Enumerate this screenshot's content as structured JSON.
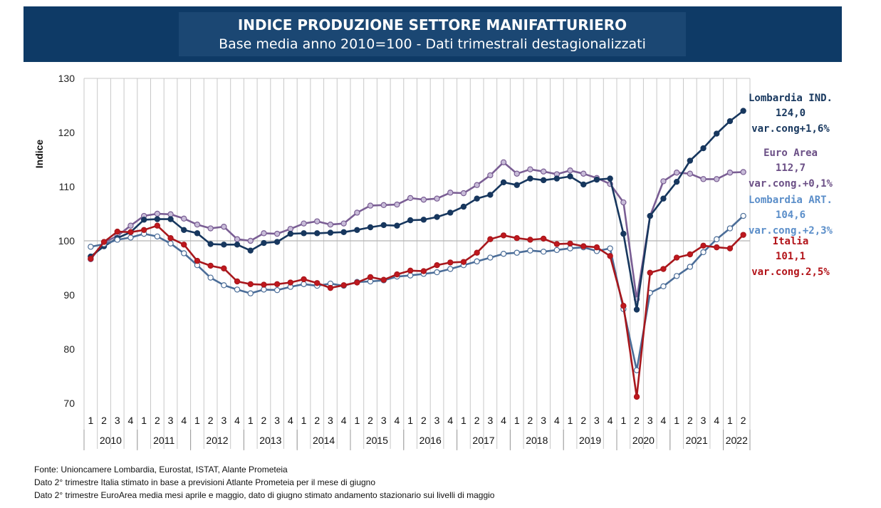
{
  "header": {
    "title": "INDICE PRODUZIONE SETTORE MANIFATTURIERO",
    "subtitle": "Base media anno 2010=100 - Dati trimestrali destagionalizzati"
  },
  "notes": [
    "Fonte:  Unioncamere Lombardia, Eurostat, ISTAT,  Alante Prometeia",
    "Dato 2° trimestre  Italia stimato in base a previsioni Atlante Prometeia per  il mese di giugno",
    "Dato 2° trimestre  EuroArea media mesi aprile e maggio, dato di giugno stimato andamento stazionario sui livelli di maggio"
  ],
  "chart_data": {
    "type": "line",
    "ylabel": "Indice",
    "xlabel": "",
    "ylim": [
      70,
      130
    ],
    "yticks": [
      70,
      80,
      90,
      100,
      110,
      120,
      130
    ],
    "quarters": [
      "1",
      "2",
      "3",
      "4",
      "1",
      "2",
      "3",
      "4",
      "1",
      "2",
      "3",
      "4",
      "1",
      "2",
      "3",
      "4",
      "1",
      "2",
      "3",
      "4",
      "1",
      "2",
      "3",
      "4",
      "1",
      "2",
      "3",
      "4",
      "1",
      "2",
      "3",
      "4",
      "1",
      "2",
      "3",
      "4",
      "1",
      "2",
      "3",
      "4",
      "1",
      "2",
      "3",
      "4",
      "1",
      "2",
      "3",
      "4",
      "1",
      "2"
    ],
    "years": [
      {
        "label": "2010",
        "quarters": 4
      },
      {
        "label": "2011",
        "quarters": 4
      },
      {
        "label": "2012",
        "quarters": 4
      },
      {
        "label": "2013",
        "quarters": 4
      },
      {
        "label": "2014",
        "quarters": 4
      },
      {
        "label": "2015",
        "quarters": 4
      },
      {
        "label": "2016",
        "quarters": 4
      },
      {
        "label": "2017",
        "quarters": 4
      },
      {
        "label": "2018",
        "quarters": 4
      },
      {
        "label": "2019",
        "quarters": 4
      },
      {
        "label": "2020",
        "quarters": 4
      },
      {
        "label": "2021",
        "quarters": 4
      },
      {
        "label": "2022",
        "quarters": 2
      }
    ],
    "grid": true,
    "reference_line": 100,
    "series": [
      {
        "key": "euro",
        "color": "#7a5e94",
        "marker_fill": "#c8bcd8",
        "values": [
          96.6,
          99.7,
          100.9,
          102.8,
          104.6,
          105.0,
          104.9,
          104.1,
          103.0,
          102.3,
          102.6,
          100.3,
          100.0,
          101.4,
          101.3,
          102.2,
          103.2,
          103.6,
          103.0,
          103.2,
          105.2,
          106.5,
          106.6,
          106.7,
          107.9,
          107.6,
          107.8,
          108.9,
          108.8,
          110.3,
          112.1,
          114.5,
          112.4,
          113.2,
          112.8,
          112.3,
          113.0,
          112.4,
          111.6,
          110.5,
          107.1,
          89.2,
          104.6,
          111.0,
          112.6,
          112.4,
          111.4,
          111.4,
          112.6,
          112.7
        ],
        "labels": [
          "Euro Area",
          "112,7",
          "var.cong.+0,1%"
        ]
      },
      {
        "key": "lomb_ind",
        "color": "#17375e",
        "marker_fill": "#17375e",
        "values": [
          97.1,
          99.0,
          100.5,
          101.6,
          103.9,
          104.0,
          104.0,
          102.0,
          101.4,
          99.4,
          99.3,
          99.3,
          98.2,
          99.6,
          99.8,
          101.3,
          101.4,
          101.4,
          101.5,
          101.6,
          102.0,
          102.5,
          102.9,
          102.8,
          103.8,
          103.9,
          104.4,
          105.2,
          106.3,
          107.8,
          108.5,
          110.8,
          110.3,
          111.5,
          111.2,
          111.5,
          111.9,
          110.4,
          111.3,
          111.5,
          101.3,
          87.3,
          104.6,
          107.8,
          110.9,
          114.8,
          117.1,
          119.8,
          122.1,
          124.0
        ],
        "labels": [
          "Lombardia IND.",
          "124,0",
          "var.cong+1,6%"
        ]
      },
      {
        "key": "lomb_art",
        "color": "#4b6d98",
        "marker_fill": "#ffffff",
        "values": [
          98.9,
          99.4,
          100.2,
          100.6,
          101.3,
          100.8,
          99.5,
          97.7,
          95.5,
          93.2,
          91.8,
          91.0,
          90.3,
          91.0,
          90.9,
          91.5,
          92.0,
          91.7,
          92.1,
          91.7,
          92.4,
          92.5,
          92.7,
          93.4,
          93.6,
          93.9,
          94.2,
          94.8,
          95.5,
          96.2,
          96.9,
          97.6,
          97.8,
          98.2,
          98.0,
          98.3,
          98.6,
          98.8,
          98.1,
          98.6,
          87.4,
          76.1,
          90.4,
          91.6,
          93.5,
          95.2,
          97.9,
          100.3,
          102.3,
          104.6
        ],
        "labels": [
          "Lombardia ART.",
          "104,6",
          "var.cong.+2,3%"
        ]
      },
      {
        "key": "italia",
        "color": "#a8171c",
        "marker_fill": "#c0181e",
        "values": [
          96.7,
          99.8,
          101.7,
          101.6,
          102.0,
          102.8,
          100.5,
          99.3,
          96.3,
          95.4,
          94.9,
          92.5,
          92.0,
          91.9,
          92.0,
          92.3,
          92.9,
          92.2,
          91.3,
          91.8,
          92.3,
          93.3,
          92.8,
          93.8,
          94.5,
          94.4,
          95.5,
          96.0,
          96.1,
          97.8,
          100.3,
          101.0,
          100.5,
          100.2,
          100.4,
          99.4,
          99.5,
          99.0,
          98.8,
          97.2,
          88.0,
          71.2,
          94.1,
          94.8,
          96.9,
          97.5,
          99.1,
          98.8,
          98.6,
          101.1
        ],
        "labels": [
          "Italia",
          "101,1",
          "var.cong.2,5%"
        ]
      }
    ]
  }
}
